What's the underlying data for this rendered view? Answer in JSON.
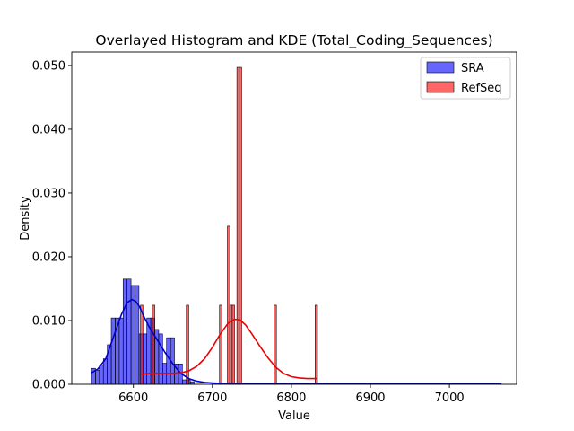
{
  "chart_data": {
    "type": "histogram",
    "title": "Overlayed Histogram and KDE (Total_Coding_Sequences)",
    "xlabel": "Value",
    "ylabel": "Density",
    "xlim": [
      6522,
      7085
    ],
    "ylim": [
      0,
      0.0521
    ],
    "xticks": [
      6600,
      6700,
      6800,
      6900,
      7000
    ],
    "yticks": [
      0.0,
      0.01,
      0.02,
      0.03,
      0.04,
      0.05
    ],
    "ytick_labels": [
      "0.000",
      "0.010",
      "0.020",
      "0.030",
      "0.040",
      "0.050"
    ],
    "grid": false,
    "legend_position": "top-right",
    "series": [
      {
        "name": "SRA",
        "color": "#0000ff",
        "kde_color": "#0000cc",
        "bins": [
          {
            "x0": 6547,
            "x1": 6552,
            "density": 0.0025
          },
          {
            "x0": 6552,
            "x1": 6557,
            "density": 0.0022
          },
          {
            "x0": 6557,
            "x1": 6562,
            "density": 0.003
          },
          {
            "x0": 6562,
            "x1": 6567,
            "density": 0.004
          },
          {
            "x0": 6567,
            "x1": 6572,
            "density": 0.0062
          },
          {
            "x0": 6572,
            "x1": 6577,
            "density": 0.0104
          },
          {
            "x0": 6577,
            "x1": 6582,
            "density": 0.0104
          },
          {
            "x0": 6582,
            "x1": 6587,
            "density": 0.0104
          },
          {
            "x0": 6587,
            "x1": 6592,
            "density": 0.0165
          },
          {
            "x0": 6592,
            "x1": 6597,
            "density": 0.0165
          },
          {
            "x0": 6597,
            "x1": 6602,
            "density": 0.0155
          },
          {
            "x0": 6602,
            "x1": 6607,
            "density": 0.0155
          },
          {
            "x0": 6607,
            "x1": 6612,
            "density": 0.0079
          },
          {
            "x0": 6612,
            "x1": 6617,
            "density": 0.0079
          },
          {
            "x0": 6617,
            "x1": 6622,
            "density": 0.0104
          },
          {
            "x0": 6622,
            "x1": 6627,
            "density": 0.0104
          },
          {
            "x0": 6627,
            "x1": 6632,
            "density": 0.0086
          },
          {
            "x0": 6632,
            "x1": 6637,
            "density": 0.0079
          },
          {
            "x0": 6637,
            "x1": 6642,
            "density": 0.0033
          },
          {
            "x0": 6642,
            "x1": 6647,
            "density": 0.0073
          },
          {
            "x0": 6647,
            "x1": 6652,
            "density": 0.0073
          },
          {
            "x0": 6652,
            "x1": 6657,
            "density": 0.0032
          },
          {
            "x0": 6657,
            "x1": 6662,
            "density": 0.0032
          },
          {
            "x0": 6662,
            "x1": 6667,
            "density": 0.0007
          },
          {
            "x0": 6667,
            "x1": 6672,
            "density": 0.0007
          },
          {
            "x0": 6672,
            "x1": 6677,
            "density": 0.0004
          }
        ],
        "kde": {
          "x": [
            6547,
            6555,
            6565,
            6575,
            6585,
            6592,
            6598,
            6603,
            6608,
            6613,
            6620,
            6630,
            6640,
            6650,
            6660,
            6670,
            6680,
            6690,
            6700,
            6720,
            6750,
            6800,
            6900,
            7000,
            7066
          ],
          "y": [
            0.0018,
            0.0024,
            0.004,
            0.0075,
            0.011,
            0.0128,
            0.0133,
            0.013,
            0.0121,
            0.0107,
            0.009,
            0.007,
            0.005,
            0.0032,
            0.0017,
            0.0009,
            0.0005,
            0.0003,
            0.0002,
            0.0001,
            0.0001,
            0.0001,
            0.0001,
            0.0001,
            0.0001
          ]
        }
      },
      {
        "name": "RefSeq",
        "color": "#ff0000",
        "kde_color": "#ee0000",
        "bins": [
          {
            "x0": 6609,
            "x1": 6612,
            "density": 0.0124
          },
          {
            "x0": 6624,
            "x1": 6627,
            "density": 0.0124
          },
          {
            "x0": 6667,
            "x1": 6670,
            "density": 0.0124
          },
          {
            "x0": 6709,
            "x1": 6712,
            "density": 0.0124
          },
          {
            "x0": 6719,
            "x1": 6722,
            "density": 0.0248
          },
          {
            "x0": 6722,
            "x1": 6725,
            "density": 0.0124
          },
          {
            "x0": 6725,
            "x1": 6728,
            "density": 0.0124
          },
          {
            "x0": 6731,
            "x1": 6734,
            "density": 0.0497
          },
          {
            "x0": 6734,
            "x1": 6737,
            "density": 0.0497
          },
          {
            "x0": 6778,
            "x1": 6781,
            "density": 0.0124
          },
          {
            "x0": 6830,
            "x1": 6833,
            "density": 0.0124
          }
        ],
        "kde": {
          "x": [
            6610,
            6620,
            6630,
            6640,
            6650,
            6660,
            6670,
            6680,
            6690,
            6700,
            6710,
            6720,
            6728,
            6735,
            6742,
            6750,
            6760,
            6770,
            6780,
            6790,
            6800,
            6810,
            6820,
            6833
          ],
          "y": [
            0.0016,
            0.0017,
            0.0017,
            0.0017,
            0.0017,
            0.0018,
            0.0021,
            0.0028,
            0.004,
            0.0058,
            0.0079,
            0.0096,
            0.0102,
            0.0101,
            0.0093,
            0.0079,
            0.006,
            0.0042,
            0.0027,
            0.0017,
            0.0012,
            0.001,
            0.0009,
            0.0009
          ]
        }
      }
    ]
  }
}
